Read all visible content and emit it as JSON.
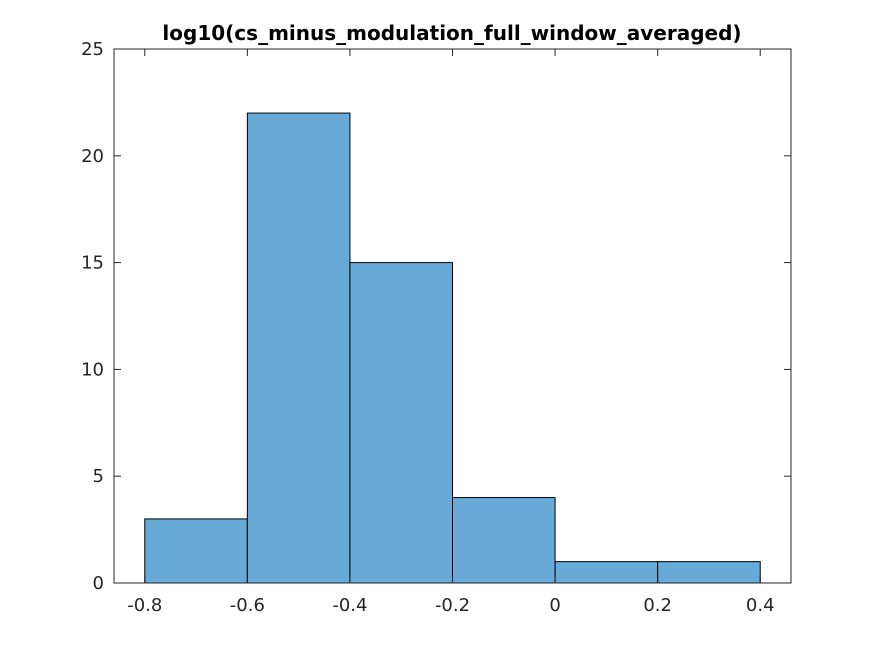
{
  "chart_data": {
    "type": "bar",
    "title": "log10(cs_minus_modulation_full_window_averaged)",
    "xlabel": "",
    "ylabel": "",
    "bin_edges": [
      -0.8,
      -0.6,
      -0.4,
      -0.2,
      0,
      0.2,
      0.4
    ],
    "values": [
      3,
      22,
      15,
      4,
      1,
      1
    ],
    "xlim": [
      -0.86,
      0.46
    ],
    "ylim": [
      0,
      25
    ],
    "xticks": [
      -0.8,
      -0.6,
      -0.4,
      -0.2,
      0,
      0.2,
      0.4
    ],
    "xtick_labels": [
      "-0.8",
      "-0.6",
      "-0.4",
      "-0.2",
      "0",
      "0.2",
      "0.4"
    ],
    "yticks": [
      0,
      5,
      10,
      15,
      20,
      25
    ],
    "ytick_labels": [
      "0",
      "5",
      "10",
      "15",
      "20",
      "25"
    ],
    "grid": false,
    "legend": "none",
    "bar_color": "#67a9d7",
    "edge_color": "#000000"
  }
}
